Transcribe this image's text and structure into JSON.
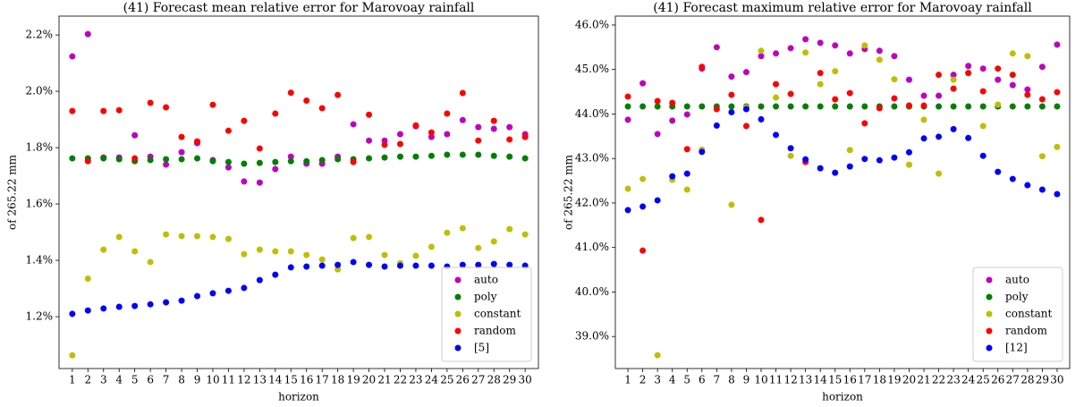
{
  "chart_data": [
    {
      "type": "scatter",
      "title": "(41) Forecast mean relative error for Marovoay rainfall",
      "xlabel": "horizon",
      "ylabel": "of 265.22 mm",
      "x": [
        1,
        2,
        3,
        4,
        5,
        6,
        7,
        8,
        9,
        10,
        11,
        12,
        13,
        14,
        15,
        16,
        17,
        18,
        19,
        20,
        21,
        22,
        23,
        24,
        25,
        26,
        27,
        28,
        29,
        30
      ],
      "xlim": [
        0.15,
        30.85
      ],
      "xticks": [
        1,
        2,
        3,
        4,
        5,
        6,
        7,
        8,
        9,
        10,
        11,
        12,
        13,
        14,
        15,
        16,
        17,
        18,
        19,
        20,
        21,
        22,
        23,
        24,
        25,
        26,
        27,
        28,
        29,
        30
      ],
      "ylim": [
        1.016,
        2.267
      ],
      "yticks": [
        {
          "value": 1.2,
          "label": "1.2%"
        },
        {
          "value": 1.4,
          "label": "1.4%"
        },
        {
          "value": 1.6,
          "label": "1.6%"
        },
        {
          "value": 1.8,
          "label": "1.8%"
        },
        {
          "value": 2.0,
          "label": "2.0%"
        },
        {
          "value": 2.2,
          "label": "2.2%"
        }
      ],
      "legend": "lower right",
      "series": [
        {
          "name": "auto",
          "color": "#bf00bf",
          "values": [
            2.124,
            2.203,
            1.765,
            1.765,
            1.844,
            1.768,
            1.74,
            1.784,
            1.816,
            1.756,
            1.73,
            1.68,
            1.676,
            1.724,
            1.768,
            1.743,
            1.743,
            1.768,
            1.883,
            1.825,
            1.825,
            1.848,
            1.876,
            1.838,
            1.848,
            1.898,
            1.873,
            1.867,
            1.873,
            1.848
          ]
        },
        {
          "name": "poly",
          "color": "#008000",
          "values": [
            1.762,
            1.762,
            1.762,
            1.759,
            1.752,
            1.756,
            1.759,
            1.759,
            1.762,
            1.752,
            1.749,
            1.743,
            1.746,
            1.749,
            1.752,
            1.752,
            1.756,
            1.759,
            1.759,
            1.762,
            1.765,
            1.768,
            1.768,
            1.771,
            1.775,
            1.775,
            1.775,
            1.771,
            1.768,
            1.762
          ]
        },
        {
          "name": "constant",
          "color": "#bfbf00",
          "values": [
            1.063,
            1.335,
            1.438,
            1.483,
            1.432,
            1.394,
            1.492,
            1.486,
            1.486,
            1.483,
            1.476,
            1.422,
            1.438,
            1.432,
            1.432,
            1.419,
            1.403,
            1.368,
            1.479,
            1.483,
            1.419,
            1.39,
            1.416,
            1.448,
            1.498,
            1.514,
            1.444,
            1.467,
            1.511,
            1.492
          ]
        },
        {
          "name": "random",
          "color": "#ff0000",
          "values": [
            1.93,
            1.752,
            1.93,
            1.933,
            1.762,
            1.959,
            1.943,
            1.838,
            1.822,
            1.952,
            1.86,
            1.895,
            1.797,
            1.921,
            1.995,
            1.967,
            1.94,
            1.987,
            1.749,
            1.917,
            1.81,
            1.813,
            1.879,
            1.854,
            1.921,
            1.994,
            1.825,
            1.895,
            1.829,
            1.838
          ]
        },
        {
          "name": "[5]",
          "color": "#0000ff",
          "values": [
            1.21,
            1.222,
            1.229,
            1.235,
            1.238,
            1.244,
            1.251,
            1.257,
            1.273,
            1.283,
            1.292,
            1.302,
            1.33,
            1.349,
            1.375,
            1.378,
            1.381,
            1.384,
            1.394,
            1.384,
            1.378,
            1.381,
            1.381,
            1.381,
            1.378,
            1.384,
            1.384,
            1.387,
            1.384,
            1.381
          ]
        }
      ]
    },
    {
      "type": "scatter",
      "title": "(41) Forecast maximum relative error for Marovoay rainfall",
      "xlabel": "horizon",
      "ylabel": "of 265.22 mm",
      "x": [
        1,
        2,
        3,
        4,
        5,
        6,
        7,
        8,
        9,
        10,
        11,
        12,
        13,
        14,
        15,
        16,
        17,
        18,
        19,
        20,
        21,
        22,
        23,
        24,
        25,
        26,
        27,
        28,
        29,
        30
      ],
      "xlim": [
        0.15,
        30.85
      ],
      "xticks": [
        1,
        2,
        3,
        4,
        5,
        6,
        7,
        8,
        9,
        10,
        11,
        12,
        13,
        14,
        15,
        16,
        17,
        18,
        19,
        20,
        21,
        22,
        23,
        24,
        25,
        26,
        27,
        28,
        29,
        30
      ],
      "ylim": [
        38.28,
        46.2
      ],
      "yticks": [
        {
          "value": 39,
          "label": "39.0%"
        },
        {
          "value": 40,
          "label": "40.0%"
        },
        {
          "value": 41,
          "label": "41.0%"
        },
        {
          "value": 42,
          "label": "42.0%"
        },
        {
          "value": 43,
          "label": "43.0%"
        },
        {
          "value": 44,
          "label": "44.0%"
        },
        {
          "value": 45,
          "label": "45.0%"
        },
        {
          "value": 46,
          "label": "46.0%"
        }
      ],
      "legend": "lower right",
      "series": [
        {
          "name": "auto",
          "color": "#bf00bf",
          "values": [
            43.87,
            44.69,
            43.55,
            43.85,
            43.99,
            45.02,
            45.5,
            44.84,
            44.94,
            45.3,
            45.36,
            45.48,
            45.68,
            45.6,
            45.54,
            45.36,
            45.46,
            45.42,
            45.3,
            44.77,
            44.41,
            44.41,
            44.88,
            45.08,
            45.02,
            44.77,
            44.65,
            44.55,
            45.06,
            45.56
          ]
        },
        {
          "name": "poly",
          "color": "#008000",
          "values": [
            44.17,
            44.17,
            44.17,
            44.17,
            44.17,
            44.17,
            44.17,
            44.17,
            44.17,
            44.17,
            44.17,
            44.17,
            44.17,
            44.17,
            44.17,
            44.17,
            44.17,
            44.17,
            44.17,
            44.17,
            44.17,
            44.17,
            44.17,
            44.17,
            44.17,
            44.17,
            44.17,
            44.17,
            44.17,
            44.17
          ]
        },
        {
          "name": "constant",
          "color": "#bfbf00",
          "values": [
            42.32,
            42.54,
            38.58,
            42.52,
            42.3,
            43.2,
            44.11,
            41.96,
            44.15,
            45.42,
            44.37,
            43.06,
            45.38,
            44.67,
            44.96,
            43.19,
            45.54,
            45.22,
            44.78,
            42.86,
            43.87,
            42.66,
            44.77,
            44.92,
            43.73,
            44.21,
            45.36,
            45.3,
            43.05,
            43.26
          ]
        },
        {
          "name": "random",
          "color": "#ff0000",
          "values": [
            44.39,
            40.93,
            44.29,
            44.25,
            43.21,
            45.06,
            44.11,
            44.43,
            43.73,
            41.62,
            44.67,
            44.45,
            42.92,
            44.92,
            44.33,
            44.47,
            43.79,
            44.13,
            44.35,
            44.19,
            44.19,
            44.88,
            44.57,
            44.92,
            44.51,
            45.02,
            44.88,
            44.43,
            44.33,
            44.49
          ]
        },
        {
          "name": "[12]",
          "color": "#0000ff",
          "values": [
            41.84,
            41.92,
            42.06,
            42.6,
            42.66,
            43.15,
            43.74,
            44.04,
            44.11,
            43.88,
            43.53,
            43.23,
            42.98,
            42.78,
            42.68,
            42.82,
            42.99,
            42.96,
            43.02,
            43.14,
            43.45,
            43.49,
            43.66,
            43.46,
            43.06,
            42.7,
            42.54,
            42.4,
            42.3,
            42.2
          ]
        }
      ]
    }
  ]
}
